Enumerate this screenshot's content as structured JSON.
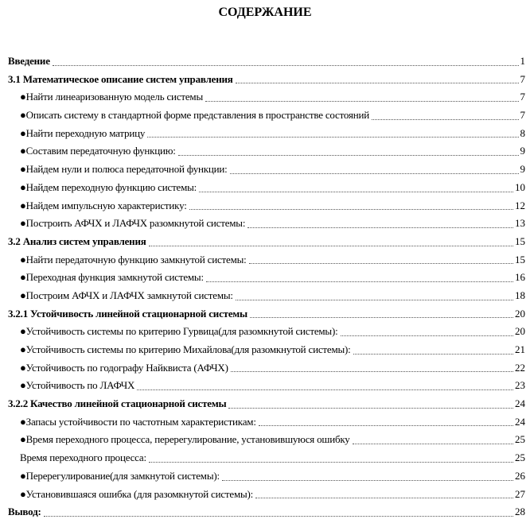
{
  "title": "СОДЕРЖАНИЕ",
  "entries": [
    {
      "label": "Введение",
      "page": "1",
      "level": 1
    },
    {
      "label": "3.1 Математическое описание систем управления",
      "page": "7",
      "level": 1
    },
    {
      "label": "●Найти линеаризованную модель системы",
      "page": "7",
      "level": 2
    },
    {
      "label": "●Описать систему в стандартной форме представления в пространстве состояний",
      "page": "7",
      "level": 2
    },
    {
      "label": "●Найти переходную матрицу",
      "page": "8",
      "level": 2
    },
    {
      "label": "●Составим передаточную функцию:",
      "page": "9",
      "level": 2
    },
    {
      "label": "●Найдем нули и полюса передаточной функции:",
      "page": "9",
      "level": 2
    },
    {
      "label": "●Найдем переходную функцию системы:",
      "page": "10",
      "level": 2
    },
    {
      "label": "●Найдем импульсную характеристику:",
      "page": "12",
      "level": 2
    },
    {
      "label": "●Построить АФЧХ и ЛАФЧХ разомкнутой системы:",
      "page": "13",
      "level": 2
    },
    {
      "label": "3.2 Анализ систем управления",
      "page": "15",
      "level": 1
    },
    {
      "label": "●Найти передаточную функцию замкнутой системы:",
      "page": "15",
      "level": 2
    },
    {
      "label": "●Переходная функция замкнутой системы:",
      "page": "16",
      "level": 2
    },
    {
      "label": "●Построим АФЧХ и ЛАФЧХ замкнутой системы:",
      "page": "18",
      "level": 2
    },
    {
      "label": "3.2.1 Устойчивость линейной стационарной системы",
      "page": "20",
      "level": 1
    },
    {
      "label": "●Устойчивость системы по критерию Гурвица(для разомкнутой системы):",
      "page": "20",
      "level": 2
    },
    {
      "label": "●Устойчивость системы по критерию Михайлова(для разомкнутой системы):",
      "page": "21",
      "level": 2
    },
    {
      "label": "●Устойчивость по годографу Найквиста (АФЧХ)",
      "page": "22",
      "level": 2
    },
    {
      "label": "●Устойчивость по ЛАФЧХ",
      "page": "23",
      "level": 2
    },
    {
      "label": "3.2.2 Качество линейной стационарной системы",
      "page": "24",
      "level": 1
    },
    {
      "label": "●Запасы устойчивости по частотным характеристикам:",
      "page": "24",
      "level": 2
    },
    {
      "label": "●Время переходного процесса, перерегулирование, установившуюся ошибку",
      "page": "25",
      "level": 2
    },
    {
      "label": "Время переходного процесса:",
      "page": "25",
      "level": 2
    },
    {
      "label": "●Перерегулирование(для замкнутой системы):",
      "page": "26",
      "level": 2
    },
    {
      "label": "●Установившаяся ошибка (для разомкнутой системы):",
      "page": "27",
      "level": 2
    },
    {
      "label": "Вывод:",
      "page": "28",
      "level": 1
    }
  ]
}
